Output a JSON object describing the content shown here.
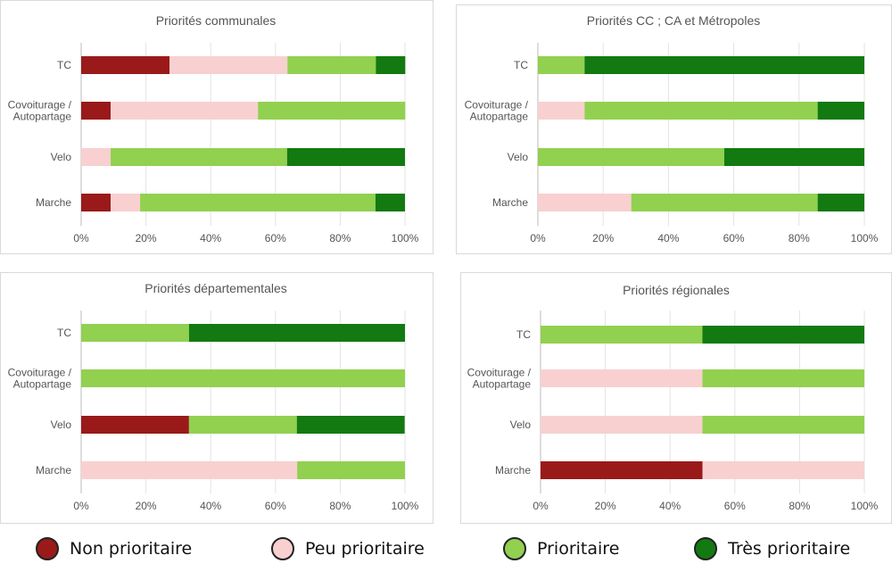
{
  "chart_data": [
    {
      "type": "bar",
      "orientation": "horizontal",
      "stacked": true,
      "title": "Priorités communales",
      "categories": [
        "TC",
        "Covoiturage / Autopartage",
        "Velo",
        "Marche"
      ],
      "series": [
        {
          "name": "Non prioritaire",
          "values": [
            27.3,
            9.1,
            0,
            9.1
          ]
        },
        {
          "name": "Peu prioritaire",
          "values": [
            36.4,
            45.5,
            9.1,
            9.1
          ]
        },
        {
          "name": "Prioritaire",
          "values": [
            27.3,
            45.5,
            54.5,
            72.7
          ]
        },
        {
          "name": "Très prioritaire",
          "values": [
            9.1,
            0,
            36.4,
            9.1
          ]
        }
      ],
      "xlim": [
        0,
        100
      ],
      "xticks": [
        "0%",
        "20%",
        "40%",
        "60%",
        "80%",
        "100%"
      ],
      "grid": true
    },
    {
      "type": "bar",
      "orientation": "horizontal",
      "stacked": true,
      "title": "Priorités CC ; CA et Métropoles",
      "categories": [
        "TC",
        "Covoiturage / Autopartage",
        "Velo",
        "Marche"
      ],
      "series": [
        {
          "name": "Non prioritaire",
          "values": [
            0,
            0,
            0,
            0
          ]
        },
        {
          "name": "Peu prioritaire",
          "values": [
            0,
            14.3,
            0,
            28.6
          ]
        },
        {
          "name": "Prioritaire",
          "values": [
            14.3,
            71.4,
            57.1,
            57.1
          ]
        },
        {
          "name": "Très prioritaire",
          "values": [
            85.7,
            14.3,
            42.9,
            14.3
          ]
        }
      ],
      "xlim": [
        0,
        100
      ],
      "xticks": [
        "0%",
        "20%",
        "40%",
        "60%",
        "80%",
        "100%"
      ],
      "grid": true
    },
    {
      "type": "bar",
      "orientation": "horizontal",
      "stacked": true,
      "title": "Priorités départementales",
      "categories": [
        "TC",
        "Covoiturage / Autopartage",
        "Velo",
        "Marche"
      ],
      "series": [
        {
          "name": "Non prioritaire",
          "values": [
            0,
            0,
            33.3,
            0
          ]
        },
        {
          "name": "Peu prioritaire",
          "values": [
            0,
            0,
            0,
            66.7
          ]
        },
        {
          "name": "Prioritaire",
          "values": [
            33.3,
            100,
            33.3,
            33.3
          ]
        },
        {
          "name": "Très prioritaire",
          "values": [
            66.7,
            0,
            33.3,
            0
          ]
        }
      ],
      "xlim": [
        0,
        100
      ],
      "xticks": [
        "0%",
        "20%",
        "40%",
        "60%",
        "80%",
        "100%"
      ],
      "grid": true
    },
    {
      "type": "bar",
      "orientation": "horizontal",
      "stacked": true,
      "title": "Priorités régionales",
      "categories": [
        "TC",
        "Covoiturage / Autopartage",
        "Velo",
        "Marche"
      ],
      "series": [
        {
          "name": "Non prioritaire",
          "values": [
            0,
            0,
            0,
            50
          ]
        },
        {
          "name": "Peu prioritaire",
          "values": [
            0,
            50,
            50,
            50
          ]
        },
        {
          "name": "Prioritaire",
          "values": [
            50,
            50,
            50,
            0
          ]
        },
        {
          "name": "Très prioritaire",
          "values": [
            50,
            0,
            0,
            0
          ]
        }
      ],
      "xlim": [
        0,
        100
      ],
      "xticks": [
        "0%",
        "20%",
        "40%",
        "60%",
        "80%",
        "100%"
      ],
      "grid": true
    }
  ],
  "legend": {
    "position": "bottom",
    "items": [
      {
        "label": "Non prioritaire",
        "color": "#9a1a1a"
      },
      {
        "label": "Peu prioritaire",
        "color": "#f8d0d0"
      },
      {
        "label": "Prioritaire",
        "color": "#92d050"
      },
      {
        "label": "Très prioritaire",
        "color": "#127a10"
      }
    ]
  }
}
